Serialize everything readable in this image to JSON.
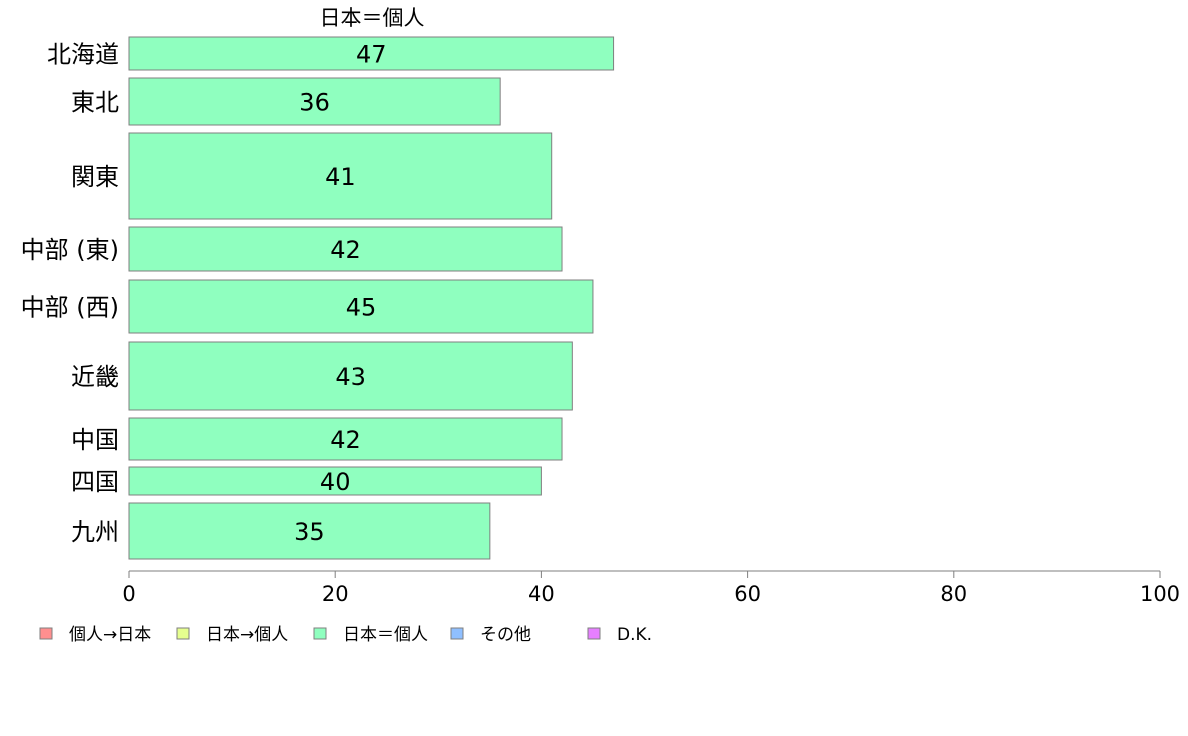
{
  "chart_data": {
    "type": "bar",
    "orientation": "horizontal",
    "title": "日本＝個人",
    "categories": [
      "北海道",
      "東北",
      "関東",
      "中部 (東)",
      "中部 (西)",
      "近畿",
      "中国",
      "四国",
      "九州"
    ],
    "series": [
      {
        "name": "日本＝個人",
        "values": [
          47,
          36,
          41,
          42,
          45,
          43,
          42,
          40,
          35
        ]
      }
    ],
    "xlim": [
      0,
      100
    ],
    "xticks": [
      0,
      20,
      40,
      60,
      80,
      100
    ],
    "grid": false,
    "legend_position": "bottom-left",
    "legend": [
      {
        "label": "個人→日本",
        "color": "#ff8f8f"
      },
      {
        "label": "日本→個人",
        "color": "#e6ff8f"
      },
      {
        "label": "日本＝個人",
        "color": "#8fffbf"
      },
      {
        "label": "その他",
        "color": "#8fbfff"
      },
      {
        "label": "D.K.",
        "color": "#e67fff"
      }
    ],
    "bar_color": "#8fffbf"
  }
}
